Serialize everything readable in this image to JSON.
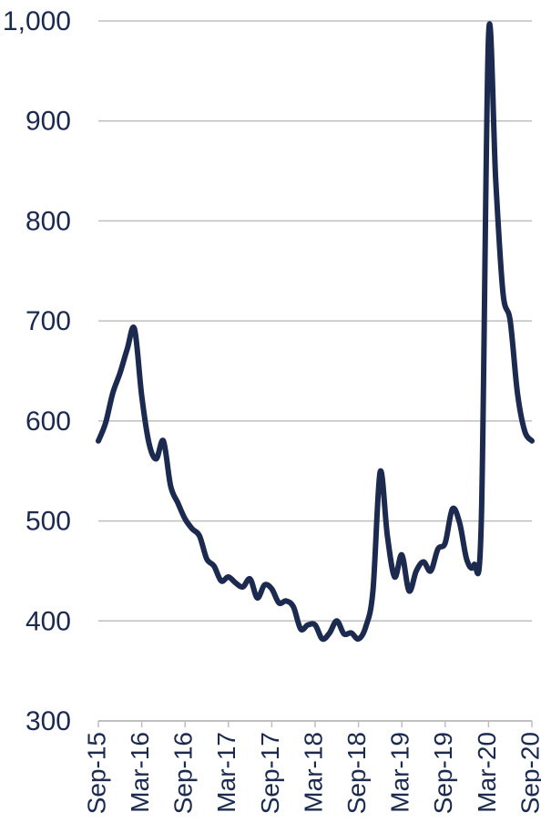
{
  "chart_data": {
    "type": "line",
    "title": "",
    "xlabel": "",
    "ylabel": "",
    "ylim": [
      300,
      1000
    ],
    "yticks": [
      300,
      400,
      500,
      600,
      700,
      800,
      900,
      1000
    ],
    "ytick_labels": [
      "300",
      "400",
      "500",
      "600",
      "700",
      "800",
      "900",
      "1,000"
    ],
    "xtick_labels": [
      "Sep-15",
      "Mar-16",
      "Sep-16",
      "Mar-17",
      "Sep-17",
      "Mar-18",
      "Sep-18",
      "Mar-19",
      "Sep-19",
      "Mar-20",
      "Sep-20"
    ],
    "grid": "horizontal",
    "legend": "none",
    "line_color": "#1b2a4e",
    "grid_color": "#bfbfbf",
    "series": [
      {
        "values": [
          {
            "x": "Sep-15",
            "y": 580
          },
          {
            "x": "Oct-15",
            "y": 598
          },
          {
            "x": "Nov-15",
            "y": 628
          },
          {
            "x": "Dec-15",
            "y": 648
          },
          {
            "x": "Jan-16",
            "y": 672
          },
          {
            "x": "Feb-16",
            "y": 692
          },
          {
            "x": "Mar-16",
            "y": 625
          },
          {
            "x": "Apr-16",
            "y": 578
          },
          {
            "x": "May-16",
            "y": 562
          },
          {
            "x": "Jun-16",
            "y": 580
          },
          {
            "x": "Jul-16",
            "y": 535
          },
          {
            "x": "Aug-16",
            "y": 518
          },
          {
            "x": "Sep-16",
            "y": 502
          },
          {
            "x": "Oct-16",
            "y": 492
          },
          {
            "x": "Nov-16",
            "y": 485
          },
          {
            "x": "Dec-16",
            "y": 462
          },
          {
            "x": "Jan-17",
            "y": 455
          },
          {
            "x": "Feb-17",
            "y": 440
          },
          {
            "x": "Mar-17",
            "y": 444
          },
          {
            "x": "Apr-17",
            "y": 438
          },
          {
            "x": "May-17",
            "y": 434
          },
          {
            "x": "Jun-17",
            "y": 442
          },
          {
            "x": "Jul-17",
            "y": 423
          },
          {
            "x": "Aug-17",
            "y": 436
          },
          {
            "x": "Sep-17",
            "y": 432
          },
          {
            "x": "Oct-17",
            "y": 418
          },
          {
            "x": "Nov-17",
            "y": 420
          },
          {
            "x": "Dec-17",
            "y": 414
          },
          {
            "x": "Jan-18",
            "y": 392
          },
          {
            "x": "Feb-18",
            "y": 396
          },
          {
            "x": "Mar-18",
            "y": 396
          },
          {
            "x": "Apr-18",
            "y": 382
          },
          {
            "x": "May-18",
            "y": 388
          },
          {
            "x": "Jun-18",
            "y": 400
          },
          {
            "x": "Jul-18",
            "y": 387
          },
          {
            "x": "Aug-18",
            "y": 388
          },
          {
            "x": "Sep-18",
            "y": 382
          },
          {
            "x": "Oct-18",
            "y": 394
          },
          {
            "x": "Nov-18",
            "y": 430
          },
          {
            "x": "Dec-18",
            "y": 549
          },
          {
            "x": "Jan-19",
            "y": 485
          },
          {
            "x": "Feb-19",
            "y": 444
          },
          {
            "x": "Mar-19",
            "y": 466
          },
          {
            "x": "Apr-19",
            "y": 430
          },
          {
            "x": "May-19",
            "y": 450
          },
          {
            "x": "Jun-19",
            "y": 459
          },
          {
            "x": "Jul-19",
            "y": 450
          },
          {
            "x": "Aug-19",
            "y": 472
          },
          {
            "x": "Sep-19",
            "y": 478
          },
          {
            "x": "Oct-19",
            "y": 512
          },
          {
            "x": "Nov-19",
            "y": 498
          },
          {
            "x": "Dec-19",
            "y": 461
          },
          {
            "x": "Jan-20",
            "y": 456
          },
          {
            "x": "Feb-20",
            "y": 500
          },
          {
            "x": "Mar-20",
            "y": 985
          },
          {
            "x": "Apr-20",
            "y": 840
          },
          {
            "x": "May-20",
            "y": 728
          },
          {
            "x": "Jun-20",
            "y": 700
          },
          {
            "x": "Jul-20",
            "y": 628
          },
          {
            "x": "Aug-20",
            "y": 590
          },
          {
            "x": "Sep-20",
            "y": 580
          }
        ]
      }
    ]
  }
}
